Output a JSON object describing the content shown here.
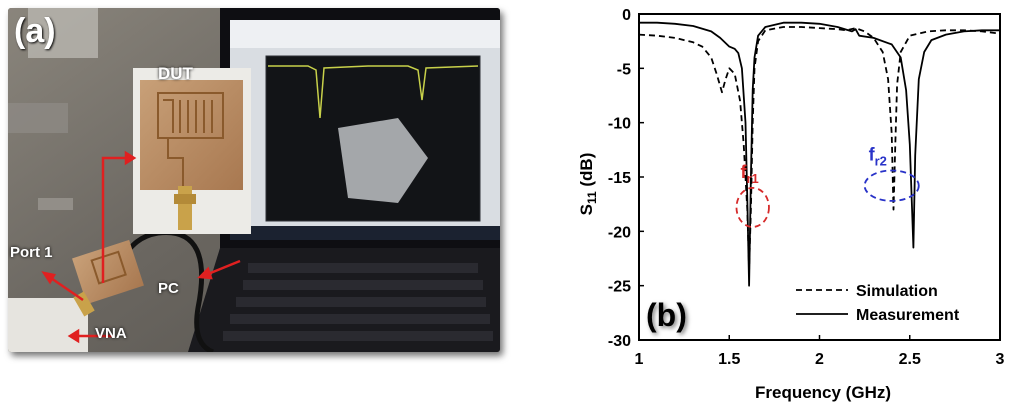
{
  "photo": {
    "panel_label": "(a)",
    "labels": {
      "dut": "DUT",
      "port1": "Port 1",
      "pc": "PC",
      "vna": "VNA"
    }
  },
  "chart_data": {
    "type": "line",
    "panel_label": "(b)",
    "xlabel": "Frequency (GHz)",
    "ylabel": "S11 (dB)",
    "xlim": [
      1,
      3
    ],
    "ylim": [
      -30,
      0
    ],
    "xticks": [
      1,
      1.5,
      2,
      2.5,
      3
    ],
    "yticks": [
      0,
      -5,
      -10,
      -15,
      -20,
      -25,
      -30
    ],
    "grid": false,
    "legend_position": "bottom-right",
    "series": [
      {
        "name": "Simulation",
        "style": "dashed",
        "x": [
          1.0,
          1.1,
          1.2,
          1.3,
          1.35,
          1.4,
          1.43,
          1.46,
          1.48,
          1.5,
          1.53,
          1.56,
          1.58,
          1.6,
          1.61,
          1.62,
          1.63,
          1.64,
          1.66,
          1.7,
          1.8,
          1.9,
          2.0,
          2.1,
          2.15,
          2.2,
          2.25,
          2.3,
          2.35,
          2.38,
          2.4,
          2.41,
          2.42,
          2.43,
          2.45,
          2.5,
          2.6,
          2.7,
          2.8,
          2.9,
          3.0
        ],
        "y": [
          -1.9,
          -2.0,
          -2.2,
          -2.6,
          -3.0,
          -4.0,
          -5.5,
          -7.2,
          -6.0,
          -5.0,
          -5.5,
          -8.0,
          -12.0,
          -18.0,
          -23.5,
          -18.0,
          -10.0,
          -5.0,
          -2.5,
          -1.5,
          -1.2,
          -1.2,
          -1.3,
          -1.4,
          -1.5,
          -1.3,
          -1.6,
          -2.2,
          -3.5,
          -6.0,
          -11.0,
          -18.0,
          -12.0,
          -6.5,
          -3.5,
          -2.0,
          -1.6,
          -1.5,
          -1.5,
          -1.6,
          -1.8
        ]
      },
      {
        "name": "Measurement",
        "style": "solid",
        "x": [
          1.0,
          1.1,
          1.2,
          1.3,
          1.4,
          1.45,
          1.5,
          1.53,
          1.55,
          1.57,
          1.59,
          1.6,
          1.61,
          1.62,
          1.63,
          1.64,
          1.66,
          1.7,
          1.8,
          1.9,
          2.0,
          2.1,
          2.18,
          2.2,
          2.22,
          2.3,
          2.4,
          2.45,
          2.48,
          2.5,
          2.52,
          2.53,
          2.55,
          2.58,
          2.62,
          2.7,
          2.8,
          2.9,
          3.0
        ],
        "y": [
          -0.8,
          -0.8,
          -0.9,
          -1.1,
          -1.6,
          -2.2,
          -3.0,
          -3.2,
          -3.6,
          -5.0,
          -10.0,
          -17.0,
          -25.0,
          -15.0,
          -7.0,
          -4.0,
          -2.0,
          -1.2,
          -0.8,
          -0.8,
          -0.9,
          -1.2,
          -1.6,
          -1.4,
          -2.0,
          -2.2,
          -2.8,
          -4.0,
          -7.0,
          -12.0,
          -21.5,
          -13.0,
          -6.0,
          -3.5,
          -2.4,
          -1.9,
          -1.6,
          -1.5,
          -1.5
        ]
      }
    ],
    "annotations": [
      {
        "label": "f",
        "sub": "r1",
        "color": "#d62a2a",
        "cx": 1.63,
        "cy": -17.8,
        "rx": 0.09,
        "ry": 1.8
      },
      {
        "label": "f",
        "sub": "r2",
        "color": "#2832c8",
        "cx": 2.4,
        "cy": -15.8,
        "rx": 0.15,
        "ry": 1.4
      }
    ]
  }
}
